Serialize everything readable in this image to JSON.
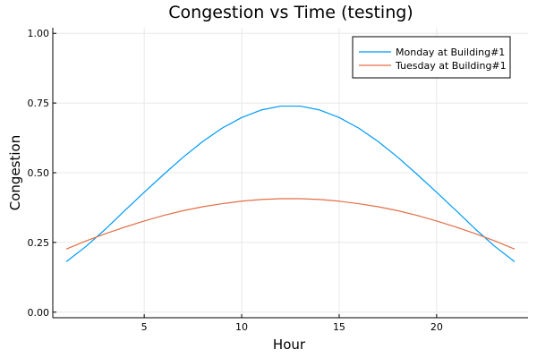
{
  "chart_data": {
    "type": "line",
    "title": "Congestion vs Time (testing)",
    "xlabel": "Hour",
    "ylabel": "Congestion",
    "xlim": [
      0.31,
      24.69
    ],
    "ylim": [
      -0.02,
      1.02
    ],
    "xticks": [
      5,
      10,
      15,
      20
    ],
    "yticks": [
      0.0,
      0.25,
      0.5,
      0.75,
      1.0
    ],
    "xtick_labels": [
      "5",
      "10",
      "15",
      "20"
    ],
    "ytick_labels": [
      "0.00",
      "0.25",
      "0.50",
      "0.75",
      "1.00"
    ],
    "grid": true,
    "legend_position": "top-right",
    "x": [
      1,
      2,
      3,
      4,
      5,
      6,
      7,
      8,
      9,
      10,
      11,
      12,
      13,
      14,
      15,
      16,
      17,
      18,
      19,
      20,
      21,
      22,
      23,
      24
    ],
    "series": [
      {
        "name": "Monday at Building#1",
        "color": "#009af9",
        "values": [
          0.181,
          0.235,
          0.297,
          0.364,
          0.43,
          0.494,
          0.556,
          0.612,
          0.66,
          0.698,
          0.725,
          0.739,
          0.739,
          0.725,
          0.698,
          0.66,
          0.612,
          0.556,
          0.494,
          0.43,
          0.364,
          0.297,
          0.235,
          0.181
        ]
      },
      {
        "name": "Tuesday at Building#1",
        "color": "#e26f46",
        "values": [
          0.226,
          0.255,
          0.281,
          0.305,
          0.327,
          0.347,
          0.364,
          0.378,
          0.389,
          0.398,
          0.404,
          0.407,
          0.407,
          0.404,
          0.398,
          0.389,
          0.378,
          0.364,
          0.347,
          0.327,
          0.305,
          0.281,
          0.255,
          0.226
        ]
      }
    ]
  }
}
